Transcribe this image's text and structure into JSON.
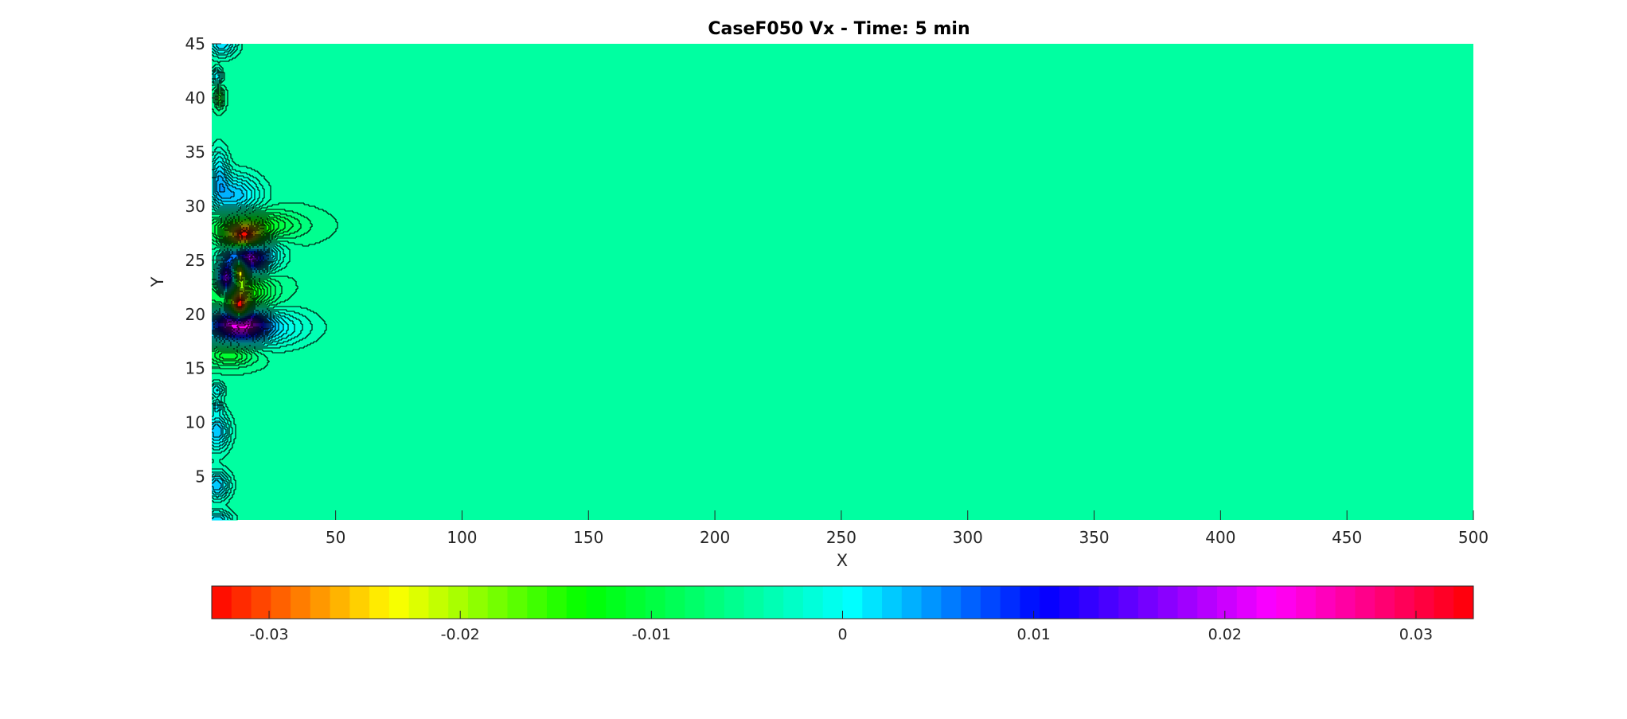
{
  "chart_data": {
    "type": "contour",
    "title": "CaseF050 Vx - Time: 5 min",
    "xlabel": "X",
    "ylabel": "Y",
    "xlim": [
      1,
      500
    ],
    "ylim": [
      1,
      45
    ],
    "x_ticks": [
      50,
      100,
      150,
      200,
      250,
      300,
      350,
      400,
      450,
      500
    ],
    "y_ticks": [
      5,
      10,
      15,
      20,
      25,
      30,
      35,
      40,
      45
    ],
    "background_value": -0.005,
    "colorbar": {
      "orientation": "horizontal",
      "placement": "bottom",
      "range": [
        -0.033,
        0.033
      ],
      "levels": 64,
      "ticks": [
        -0.03,
        -0.02,
        -0.01,
        0,
        0.01,
        0.02,
        0.03
      ],
      "tick_labels": [
        "-0.03",
        "-0.02",
        "-0.01",
        "0",
        "0.01",
        "0.02",
        "0.03"
      ]
    },
    "colormap_stops": [
      {
        "value": -0.033,
        "color": "#ff0000"
      },
      {
        "value": -0.0235,
        "color": "#ffff00"
      },
      {
        "value": -0.0135,
        "color": "#00ff00"
      },
      {
        "value": 0.0005,
        "color": "#00ffff"
      },
      {
        "value": 0.0105,
        "color": "#0000ff"
      },
      {
        "value": 0.0225,
        "color": "#ff00ff"
      },
      {
        "value": 0.033,
        "color": "#ff0000"
      }
    ],
    "features": [
      {
        "x": 7,
        "y": 23.2,
        "sx": 2.5,
        "sy": 0.9,
        "amp": 0.028
      },
      {
        "x": 14,
        "y": 27.0,
        "sx": 5,
        "sy": 0.9,
        "amp": -0.03
      },
      {
        "x": 14,
        "y": 25.3,
        "sx": 5,
        "sy": 1.0,
        "amp": 0.027
      },
      {
        "x": 12,
        "y": 24.2,
        "sx": 2,
        "sy": 0.8,
        "amp": -0.028
      },
      {
        "x": 12,
        "y": 20.5,
        "sx": 2.5,
        "sy": 0.9,
        "amp": -0.029
      },
      {
        "x": 12,
        "y": 19.2,
        "sx": 6,
        "sy": 0.9,
        "amp": 0.028
      },
      {
        "x": 16,
        "y": 18.8,
        "sx": 14,
        "sy": 1.2,
        "amp": 0.009
      },
      {
        "x": 12,
        "y": 22.0,
        "sx": 8,
        "sy": 1.5,
        "amp": -0.012
      },
      {
        "x": 17,
        "y": 28.2,
        "sx": 12,
        "sy": 0.9,
        "amp": -0.008
      },
      {
        "x": 20,
        "y": 25.6,
        "sx": 6,
        "sy": 1.2,
        "amp": 0.007
      },
      {
        "x": 10,
        "y": 31.0,
        "sx": 7,
        "sy": 1.3,
        "amp": 0.008
      },
      {
        "x": 8,
        "y": 16.3,
        "sx": 7,
        "sy": 0.7,
        "amp": -0.007
      },
      {
        "x": 3,
        "y": 9.2,
        "sx": 3.5,
        "sy": 1.2,
        "amp": 0.008
      },
      {
        "x": 3,
        "y": 4.2,
        "sx": 3.5,
        "sy": 0.9,
        "amp": 0.008
      },
      {
        "x": 4,
        "y": 33.0,
        "sx": 2.5,
        "sy": 1.6,
        "amp": 0.006
      },
      {
        "x": 3,
        "y": 42.0,
        "sx": 1.5,
        "sy": 0.5,
        "amp": 0.006
      },
      {
        "x": 3,
        "y": 13.0,
        "sx": 2,
        "sy": 0.5,
        "amp": 0.005
      },
      {
        "x": 4,
        "y": 40.0,
        "sx": 1.2,
        "sy": 0.6,
        "amp": -0.007
      },
      {
        "x": 5,
        "y": 45.0,
        "sx": 4,
        "sy": 0.8,
        "amp": 0.007
      },
      {
        "x": 3,
        "y": 1.0,
        "sx": 4,
        "sy": 0.6,
        "amp": 0.007
      },
      {
        "x": 3,
        "y": 11.5,
        "sx": 1.5,
        "sy": 0.4,
        "amp": 0.005
      }
    ]
  }
}
